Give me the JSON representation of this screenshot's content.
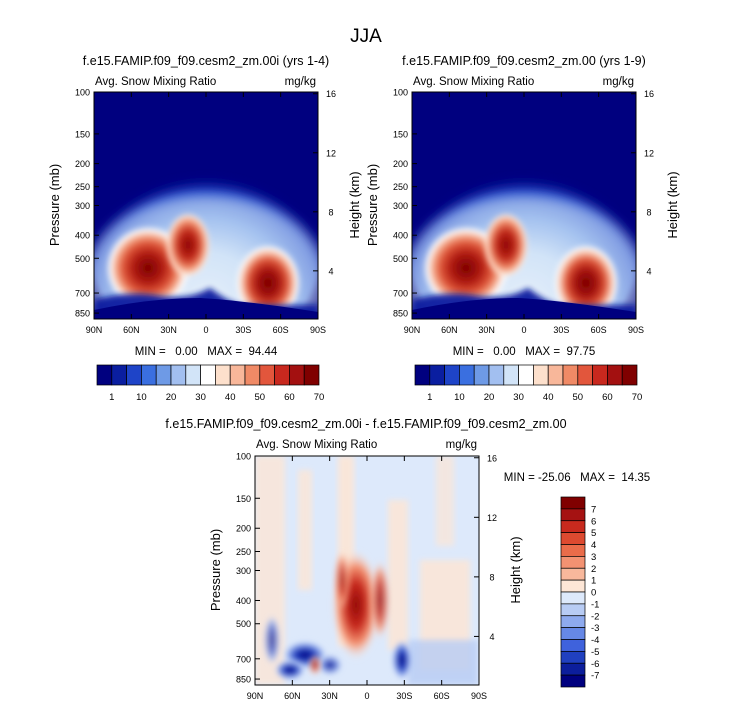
{
  "page_title": "JJA",
  "colors": {
    "deep_blue": "#00007f",
    "white": "#ffffff",
    "dark_red": "#800000"
  },
  "chart_data": [
    {
      "type": "heatmap",
      "id": "p1",
      "title": "f.e15.FAMIP.f09_f09.cesm2_zm.00i (yrs 1-4)",
      "left_label": "Avg. Snow Mixing Ratio",
      "right_label": "mg/kg",
      "ylabel": "Pressure (mb)",
      "y2label": "Height (km)",
      "x_ticks": [
        "90N",
        "60N",
        "30N",
        "0",
        "30S",
        "60S",
        "90S"
      ],
      "y_ticks": [
        "100",
        "150",
        "200",
        "250",
        "300",
        "400",
        "500",
        "700",
        "850"
      ],
      "y2_ticks": [
        "16",
        "12",
        "8",
        "4"
      ],
      "stats": "MIN =   0.00   MAX =  94.44",
      "colorbar": {
        "orientation": "horizontal",
        "labels": [
          "1",
          "10",
          "20",
          "30",
          "40",
          "50",
          "60",
          "70"
        ],
        "colors": [
          "#00007f",
          "#0a1ea0",
          "#1e44c8",
          "#3a6fe0",
          "#6e9ae6",
          "#a2bff0",
          "#d2e4f8",
          "#ffffff",
          "#fde0cc",
          "#f8b79a",
          "#f08a66",
          "#e2563c",
          "#c8281e",
          "#a31010",
          "#800000"
        ]
      }
    },
    {
      "type": "heatmap",
      "id": "p2",
      "title": "f.e15.FAMIP.f09_f09.cesm2_zm.00 (yrs 1-9)",
      "left_label": "Avg. Snow Mixing Ratio",
      "right_label": "mg/kg",
      "ylabel": "Pressure (mb)",
      "y2label": "Height (km)",
      "x_ticks": [
        "90N",
        "60N",
        "30N",
        "0",
        "30S",
        "60S",
        "90S"
      ],
      "y_ticks": [
        "100",
        "150",
        "200",
        "250",
        "300",
        "400",
        "500",
        "700",
        "850"
      ],
      "y2_ticks": [
        "16",
        "12",
        "8",
        "4"
      ],
      "stats": "MIN =   0.00   MAX =  97.75",
      "colorbar": {
        "orientation": "horizontal",
        "labels": [
          "1",
          "10",
          "20",
          "30",
          "40",
          "50",
          "60",
          "70"
        ],
        "colors": [
          "#00007f",
          "#0a1ea0",
          "#1e44c8",
          "#3a6fe0",
          "#6e9ae6",
          "#a2bff0",
          "#d2e4f8",
          "#ffffff",
          "#fde0cc",
          "#f8b79a",
          "#f08a66",
          "#e2563c",
          "#c8281e",
          "#a31010",
          "#800000"
        ]
      }
    },
    {
      "type": "heatmap",
      "id": "p3",
      "title": "f.e15.FAMIP.f09_f09.cesm2_zm.00i - f.e15.FAMIP.f09_f09.cesm2_zm.00",
      "left_label": "Avg. Snow Mixing Ratio",
      "right_label": "mg/kg",
      "ylabel": "Pressure (mb)",
      "y2label": "Height (km)",
      "x_ticks": [
        "90N",
        "60N",
        "30N",
        "0",
        "30S",
        "60S",
        "90S"
      ],
      "y_ticks": [
        "100",
        "150",
        "200",
        "250",
        "300",
        "400",
        "500",
        "700",
        "850"
      ],
      "y2_ticks": [
        "16",
        "12",
        "8",
        "4"
      ],
      "stats": "MIN = -25.06   MAX =  14.35",
      "colorbar": {
        "orientation": "vertical",
        "labels": [
          "7",
          "6",
          "5",
          "4",
          "3",
          "2",
          "1",
          "0",
          "-1",
          "-2",
          "-3",
          "-4",
          "-5",
          "-6",
          "-7"
        ],
        "colors": [
          "#800000",
          "#a51212",
          "#c82a1e",
          "#dd4a30",
          "#ea6c4a",
          "#f39272",
          "#f8b89c",
          "#fde6d6",
          "#dde9fb",
          "#b8ccf4",
          "#8eaaee",
          "#6688e6",
          "#3f62dc",
          "#2040c0",
          "#0c1e9c",
          "#00007f"
        ]
      }
    }
  ]
}
